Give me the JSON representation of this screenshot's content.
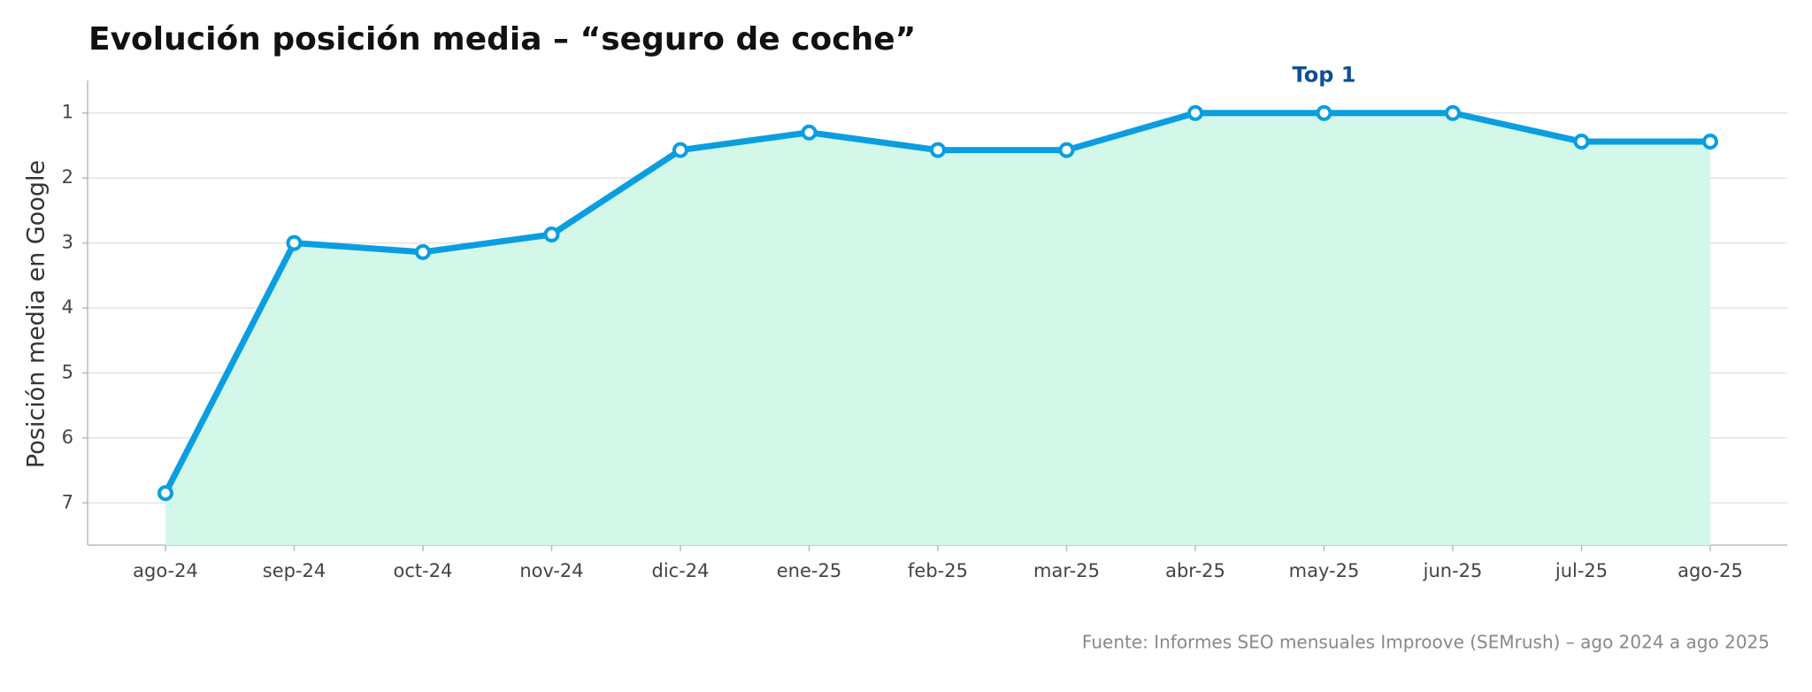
{
  "chart_data": {
    "type": "line",
    "title": "Evolución posición media – “seguro de coche”",
    "y_label": "Posición media en Google",
    "source": "Fuente: Informes SEO mensuales Improove (SEMrush) – ago 2024 a ago 2025",
    "categories": [
      "ago-24",
      "sep-24",
      "oct-24",
      "nov-24",
      "dic-24",
      "ene-25",
      "feb-25",
      "mar-25",
      "abr-25",
      "may-25",
      "jun-25",
      "jul-25",
      "ago-25"
    ],
    "series": [
      {
        "name": "Posición media",
        "color": "#0a9ee0",
        "area_color": "#d3f8ea",
        "values": [
          6.85,
          3.0,
          3.14,
          2.87,
          1.57,
          1.3,
          1.57,
          1.57,
          1.0,
          1.0,
          1.0,
          1.44,
          1.44
        ]
      }
    ],
    "ylim": [
      0.5,
      7.65
    ],
    "y_inverted": true,
    "yticks": [
      1,
      2,
      3,
      4,
      5,
      6,
      7
    ],
    "grid": true,
    "annotations": [
      {
        "text": "Top 1",
        "x": "may-25",
        "y": 1,
        "color": "#0d4f96"
      }
    ]
  }
}
